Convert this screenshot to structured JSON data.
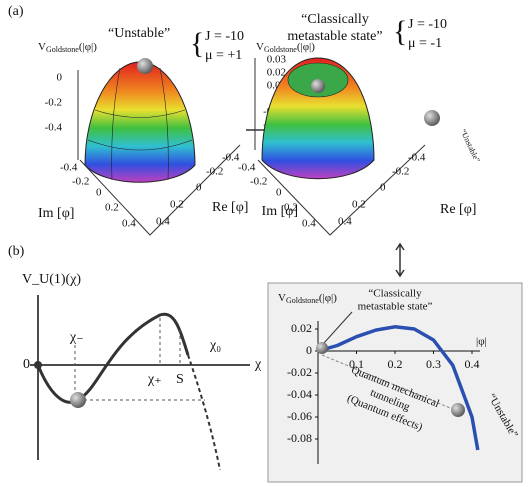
{
  "panel_a": {
    "label": "(a)",
    "left": {
      "z_label": {
        "main": "V",
        "sub": "Goldstone",
        "arg": "(|φ|)"
      },
      "annotation": "“Unstable”",
      "params": [
        "J = -10",
        "μ = +1"
      ],
      "zticks": [
        0,
        -0.2,
        -0.4
      ],
      "im_ticks": [
        -0.4,
        -0.2,
        0,
        0.2,
        0.4
      ],
      "re_ticks": [
        -0.4,
        -0.2,
        0,
        0.2,
        0.4
      ],
      "im_label": "Im [φ]",
      "re_label": "Re [φ]"
    },
    "right": {
      "z_label": {
        "main": "V",
        "sub": "Goldstone",
        "arg": "(|φ|)"
      },
      "annotation": [
        "“Classically",
        "metastable state”"
      ],
      "params": [
        "J = -10",
        "μ = -1"
      ],
      "side_note": "“Unstable”",
      "zticks": [
        0.03,
        0.02,
        0.01,
        0,
        -0.01,
        -0.03
      ],
      "im_ticks": [
        -0.4,
        -0.2,
        0,
        0.2,
        0.4
      ],
      "re_ticks": [
        -0.4,
        -0.2,
        0,
        0.2,
        0.4
      ],
      "im_label": "Im [φ]",
      "re_label": "Re [φ]"
    }
  },
  "panel_b": {
    "label": "(b)",
    "schematic": {
      "y_label": "V_U(1)(χ)",
      "origin": "0",
      "x_label": "χ",
      "chi_minus": "χ₋",
      "chi_plus": "χ₊",
      "s": "S",
      "chi_zero": "χ₀"
    },
    "chart": {
      "type": "line",
      "title": {
        "main": "V",
        "sub": "Goldstone",
        "arg": "(|φ|)"
      },
      "x_label": "|φ|",
      "annotation": [
        "“Classically",
        "metastable state”"
      ],
      "tunneling": [
        "Quantum mechanical",
        "tunneling",
        "(Quantum effects)"
      ],
      "unstable": "“Unstable”",
      "x": [
        0,
        0.05,
        0.1,
        0.15,
        0.2,
        0.25,
        0.3,
        0.35,
        0.4,
        0.415
      ],
      "values": [
        0,
        0.005,
        0.013,
        0.019,
        0.022,
        0.02,
        0.01,
        -0.013,
        -0.06,
        -0.09
      ],
      "color": "#2a4fb0",
      "xlim": [
        0,
        0.4
      ],
      "ylim": [
        -0.08,
        0.02
      ],
      "xticks": [
        0.1,
        0.2,
        0.3,
        0.4
      ],
      "yticks": [
        0.02,
        0,
        -0.02,
        -0.04,
        -0.06,
        -0.08
      ]
    }
  }
}
